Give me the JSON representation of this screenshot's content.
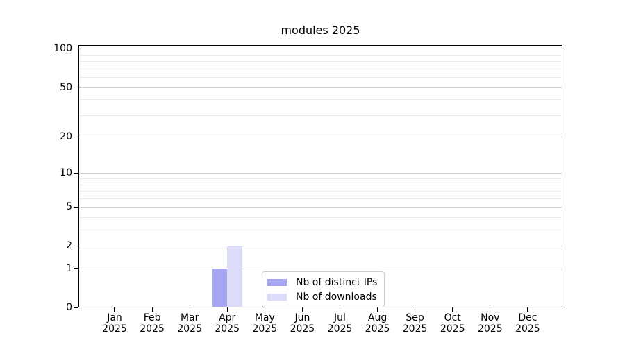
{
  "chart_data": {
    "type": "bar",
    "title": "modules 2025",
    "categories": [
      "Jan",
      "Feb",
      "Mar",
      "Apr",
      "May",
      "Jun",
      "Jul",
      "Aug",
      "Sep",
      "Oct",
      "Nov",
      "Dec"
    ],
    "category_year": "2025",
    "series": [
      {
        "name": "Nb of distinct IPs",
        "color": "#a6a6f2",
        "values": [
          0,
          0,
          0,
          1,
          0,
          0,
          0,
          0,
          0,
          0,
          0,
          0
        ]
      },
      {
        "name": "Nb of downloads",
        "color": "#dcdcf8",
        "values": [
          0,
          0,
          0,
          2,
          0,
          0,
          0,
          0,
          0,
          0,
          0,
          0
        ]
      }
    ],
    "xlabel": "",
    "ylabel": "",
    "y_axis": {
      "scale": "log1p",
      "ticks": [
        0,
        1,
        2,
        5,
        10,
        20,
        50,
        100
      ],
      "minor_ticks": [
        3,
        4,
        6,
        7,
        8,
        9,
        30,
        40,
        60,
        70,
        80,
        90
      ],
      "ylim": [
        0,
        107
      ]
    },
    "grid": "horizontal",
    "legend_position": "lower center"
  },
  "colors": {
    "major_grid": "#cfcfcf",
    "minor_grid": "#ececec",
    "axis": "#000000",
    "background": "#ffffff"
  }
}
